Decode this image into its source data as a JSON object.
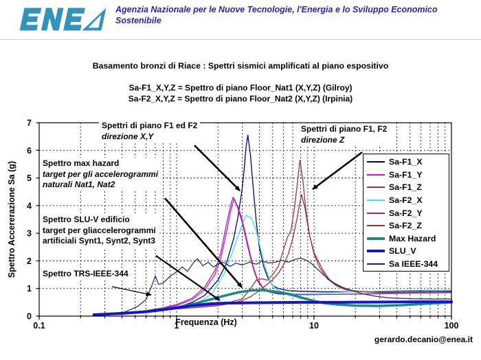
{
  "header": {
    "logo_text": "ENEA",
    "logo_color": "#3294BB",
    "agency_line1": "Agenzia Nazionale per le Nuove Tecnologie, l'Energia e lo Sviluppo Economico",
    "agency_line2": "Sostenibile",
    "agency_color": "#2424BB"
  },
  "title": "Basamento bronzi di Riace : Spettri sismici amplificati al piano espositivo",
  "subtitle_line1": "Sa-F1_X,Y,Z = Spettro di piano Floor_Nat1 (X,Y,Z) (Gilroy)",
  "subtitle_line2": "Sa-F2_X,Y,Z = Spettro di piano Floor_Nat2 (X,Y,Z) (Irpinia)",
  "footer": {
    "email": "gerardo.decanio@enea.it"
  },
  "annotations": {
    "xy": {
      "line1": "Spettri di piano F1 ed F2",
      "line2": "direzione X,Y"
    },
    "z": {
      "line1": "Spettri di piano F1, F2",
      "line2": "direzione Z"
    },
    "max_hazard": {
      "line1": "Spettro max hazard",
      "line2": "target per gli accelerogrammi",
      "line3": "naturali Nat1, Nat2"
    },
    "slu": {
      "line1": "Spettro SLU-V edificio",
      "line2": "target per gliaccelerogrammi",
      "line3": "artificiali Synt1, Synt2, Synt3"
    },
    "ieee": {
      "line1": "Spettro TRS-IEEE-344"
    }
  },
  "chart_data": {
    "type": "line",
    "xlabel": "Frequenza  (Hz)",
    "ylabel": "Spettro Accererazione Sa (g)",
    "x_scale": "log",
    "xlim": [
      0.1,
      100
    ],
    "ylim": [
      0,
      7
    ],
    "x_ticks": [
      "0.1",
      "1",
      "10",
      "100"
    ],
    "y_ticks": [
      "0",
      "1",
      "2",
      "3",
      "4",
      "5",
      "6",
      "7"
    ],
    "grid": "dashed",
    "legend_position": "inside-right",
    "series": [
      {
        "name": "Sa-F1_X",
        "color": "#00007E",
        "width": 1.3,
        "points": [
          [
            0.25,
            0.06
          ],
          [
            0.4,
            0.1
          ],
          [
            0.6,
            0.15
          ],
          [
            0.8,
            0.22
          ],
          [
            1,
            0.3
          ],
          [
            1.3,
            0.5
          ],
          [
            1.6,
            0.75
          ],
          [
            2,
            1.3
          ],
          [
            2.3,
            1.9
          ],
          [
            2.6,
            2.8
          ],
          [
            2.8,
            3.6
          ],
          [
            3,
            4.6
          ],
          [
            3.1,
            5.3
          ],
          [
            3.2,
            6.1
          ],
          [
            3.3,
            6.55
          ],
          [
            3.45,
            5.8
          ],
          [
            3.6,
            4.7
          ],
          [
            3.8,
            3.4
          ],
          [
            4,
            2.5
          ],
          [
            4.3,
            1.8
          ],
          [
            4.6,
            1.4
          ],
          [
            5,
            1.1
          ],
          [
            5.5,
            1.0
          ],
          [
            6.5,
            0.92
          ],
          [
            8,
            0.9
          ],
          [
            12,
            0.88
          ],
          [
            20,
            0.88
          ],
          [
            50,
            0.9
          ],
          [
            100,
            0.9
          ]
        ]
      },
      {
        "name": "Sa-F1_Y",
        "color": "#EE00EE",
        "width": 1.3,
        "points": [
          [
            0.25,
            0.06
          ],
          [
            0.5,
            0.14
          ],
          [
            0.8,
            0.28
          ],
          [
            1,
            0.38
          ],
          [
            1.3,
            0.6
          ],
          [
            1.6,
            0.95
          ],
          [
            1.9,
            1.5
          ],
          [
            2.1,
            2.1
          ],
          [
            2.3,
            3.0
          ],
          [
            2.5,
            3.9
          ],
          [
            2.62,
            4.25
          ],
          [
            2.8,
            3.95
          ],
          [
            3,
            3.5
          ],
          [
            3.3,
            2.6
          ],
          [
            3.6,
            1.8
          ],
          [
            3.9,
            1.3
          ],
          [
            4.3,
            1.0
          ],
          [
            4.8,
            0.88
          ],
          [
            5.5,
            0.82
          ],
          [
            7,
            0.78
          ],
          [
            10,
            0.78
          ],
          [
            20,
            0.8
          ],
          [
            50,
            0.83
          ],
          [
            100,
            0.85
          ]
        ]
      },
      {
        "name": "Sa-F1_Z",
        "color": "#993355",
        "width": 1.3,
        "points": [
          [
            0.25,
            0.06
          ],
          [
            0.5,
            0.16
          ],
          [
            0.8,
            0.25
          ],
          [
            1,
            0.3
          ],
          [
            1.5,
            0.36
          ],
          [
            2,
            0.42
          ],
          [
            2.5,
            0.52
          ],
          [
            3,
            0.62
          ],
          [
            3.4,
            0.95
          ],
          [
            3.8,
            1.3
          ],
          [
            4.2,
            1.35
          ],
          [
            4.6,
            1.3
          ],
          [
            5,
            1.5
          ],
          [
            5.5,
            1.8
          ],
          [
            6,
            2.4
          ],
          [
            6.4,
            2.85
          ],
          [
            6.8,
            3.1
          ],
          [
            7.2,
            3.9
          ],
          [
            7.6,
            4.9
          ],
          [
            7.9,
            5.65
          ],
          [
            8.3,
            4.9
          ],
          [
            8.7,
            3.9
          ],
          [
            9.3,
            2.9
          ],
          [
            10,
            2.25
          ],
          [
            11,
            1.75
          ],
          [
            12.5,
            1.35
          ],
          [
            14.5,
            1.1
          ],
          [
            17,
            0.95
          ],
          [
            22,
            0.88
          ],
          [
            35,
            0.85
          ],
          [
            60,
            0.85
          ],
          [
            100,
            0.86
          ]
        ]
      },
      {
        "name": "Sa-F2_X",
        "color": "#3FE0E8",
        "width": 1.3,
        "points": [
          [
            0.25,
            0.05
          ],
          [
            0.5,
            0.11
          ],
          [
            0.8,
            0.2
          ],
          [
            1,
            0.27
          ],
          [
            1.4,
            0.45
          ],
          [
            1.8,
            0.8
          ],
          [
            2.2,
            1.5
          ],
          [
            2.5,
            2.2
          ],
          [
            2.8,
            2.9
          ],
          [
            3,
            3.3
          ],
          [
            3.2,
            3.65
          ],
          [
            3.5,
            3.55
          ],
          [
            3.8,
            3.1
          ],
          [
            4.1,
            2.4
          ],
          [
            4.4,
            1.8
          ],
          [
            4.8,
            1.25
          ],
          [
            5.2,
            1.0
          ],
          [
            5.8,
            0.88
          ],
          [
            7,
            0.82
          ],
          [
            9,
            0.82
          ],
          [
            13,
            0.85
          ],
          [
            20,
            0.88
          ],
          [
            40,
            0.92
          ],
          [
            100,
            0.95
          ]
        ]
      },
      {
        "name": "Sa-F2_Y",
        "color": "#8A2E8A",
        "width": 1.3,
        "points": [
          [
            0.25,
            0.06
          ],
          [
            0.5,
            0.14
          ],
          [
            0.8,
            0.3
          ],
          [
            1,
            0.42
          ],
          [
            1.3,
            0.65
          ],
          [
            1.6,
            1.05
          ],
          [
            1.9,
            1.65
          ],
          [
            2.1,
            2.3
          ],
          [
            2.3,
            3.3
          ],
          [
            2.5,
            4.1
          ],
          [
            2.58,
            4.3
          ],
          [
            2.75,
            4.0
          ],
          [
            3,
            3.4
          ],
          [
            3.3,
            2.5
          ],
          [
            3.6,
            1.75
          ],
          [
            3.9,
            1.25
          ],
          [
            4.3,
            0.98
          ],
          [
            4.8,
            0.86
          ],
          [
            5.5,
            0.8
          ],
          [
            7,
            0.78
          ],
          [
            10,
            0.78
          ],
          [
            20,
            0.8
          ],
          [
            50,
            0.84
          ],
          [
            100,
            0.86
          ]
        ]
      },
      {
        "name": "Sa-F2_Z",
        "color": "#993333",
        "width": 1.3,
        "points": [
          [
            0.25,
            0.05
          ],
          [
            0.5,
            0.14
          ],
          [
            1,
            0.26
          ],
          [
            1.5,
            0.32
          ],
          [
            2,
            0.38
          ],
          [
            2.5,
            0.46
          ],
          [
            3,
            0.56
          ],
          [
            3.5,
            0.72
          ],
          [
            4,
            0.92
          ],
          [
            4.5,
            1.12
          ],
          [
            5,
            1.32
          ],
          [
            5.5,
            1.55
          ],
          [
            6,
            1.85
          ],
          [
            6.5,
            2.25
          ],
          [
            7,
            2.8
          ],
          [
            7.5,
            3.5
          ],
          [
            8.1,
            4.4
          ],
          [
            8.6,
            3.9
          ],
          [
            9.2,
            3.0
          ],
          [
            10,
            2.3
          ],
          [
            11.5,
            1.7
          ],
          [
            13,
            1.3
          ],
          [
            15.5,
            1.05
          ],
          [
            19,
            0.92
          ],
          [
            28,
            0.86
          ],
          [
            50,
            0.85
          ],
          [
            100,
            0.85
          ]
        ]
      },
      {
        "name": "Max Hazard",
        "color": "#168A8A",
        "width": 3.5,
        "points": [
          [
            0.25,
            0.05
          ],
          [
            0.4,
            0.1
          ],
          [
            0.6,
            0.17
          ],
          [
            0.8,
            0.24
          ],
          [
            1,
            0.31
          ],
          [
            1.3,
            0.43
          ],
          [
            1.7,
            0.58
          ],
          [
            2.2,
            0.73
          ],
          [
            2.8,
            0.86
          ],
          [
            3.5,
            0.93
          ],
          [
            4.2,
            0.94
          ],
          [
            5,
            0.9
          ],
          [
            6,
            0.84
          ],
          [
            7,
            0.76
          ],
          [
            8.5,
            0.64
          ],
          [
            10,
            0.55
          ],
          [
            12,
            0.47
          ],
          [
            15,
            0.42
          ],
          [
            20,
            0.38
          ],
          [
            30,
            0.37
          ],
          [
            45,
            0.4
          ],
          [
            65,
            0.45
          ],
          [
            100,
            0.5
          ]
        ]
      },
      {
        "name": "SLU_V",
        "color": "#1515CC",
        "width": 4,
        "points": [
          [
            0.25,
            0.05
          ],
          [
            0.4,
            0.1
          ],
          [
            0.6,
            0.16
          ],
          [
            0.8,
            0.23
          ],
          [
            1,
            0.3
          ],
          [
            1.3,
            0.38
          ],
          [
            1.7,
            0.44
          ],
          [
            2.2,
            0.47
          ],
          [
            3,
            0.48
          ],
          [
            5,
            0.49
          ],
          [
            8,
            0.5
          ],
          [
            15,
            0.5
          ],
          [
            30,
            0.51
          ],
          [
            60,
            0.52
          ],
          [
            100,
            0.52
          ]
        ]
      },
      {
        "name": "Sa  IEEE-344",
        "color": "#1F1F6E",
        "width": 1.2,
        "points": [
          [
            0.3,
            0.06
          ],
          [
            0.42,
            0.15
          ],
          [
            0.52,
            0.35
          ],
          [
            0.6,
            0.6
          ],
          [
            0.66,
            1.1
          ],
          [
            0.7,
            1.45
          ],
          [
            0.74,
            1.15
          ],
          [
            0.8,
            1.2
          ],
          [
            0.9,
            1.45
          ],
          [
            1,
            1.6
          ],
          [
            1.1,
            1.78
          ],
          [
            1.2,
            1.62
          ],
          [
            1.32,
            1.92
          ],
          [
            1.42,
            2.08
          ],
          [
            1.55,
            1.82
          ],
          [
            1.7,
            1.95
          ],
          [
            1.85,
            1.78
          ],
          [
            2,
            1.88
          ],
          [
            2.2,
            1.95
          ],
          [
            2.45,
            1.8
          ],
          [
            2.7,
            1.92
          ],
          [
            3,
            1.85
          ],
          [
            3.4,
            1.95
          ],
          [
            3.8,
            1.88
          ],
          [
            4.2,
            2.0
          ],
          [
            4.7,
            1.92
          ],
          [
            5.2,
            1.95
          ],
          [
            5.8,
            2.02
          ],
          [
            6.5,
            1.95
          ],
          [
            7.2,
            2.05
          ],
          [
            8,
            2.1
          ],
          [
            8.8,
            2.02
          ],
          [
            9.6,
            1.9
          ],
          [
            10.5,
            1.72
          ],
          [
            12,
            1.45
          ],
          [
            14,
            1.2
          ],
          [
            16,
            1.05
          ],
          [
            19,
            0.92
          ],
          [
            23,
            0.8
          ],
          [
            28,
            0.72
          ],
          [
            35,
            0.66
          ],
          [
            50,
            0.63
          ],
          [
            70,
            0.62
          ],
          [
            100,
            0.62
          ]
        ]
      }
    ]
  }
}
